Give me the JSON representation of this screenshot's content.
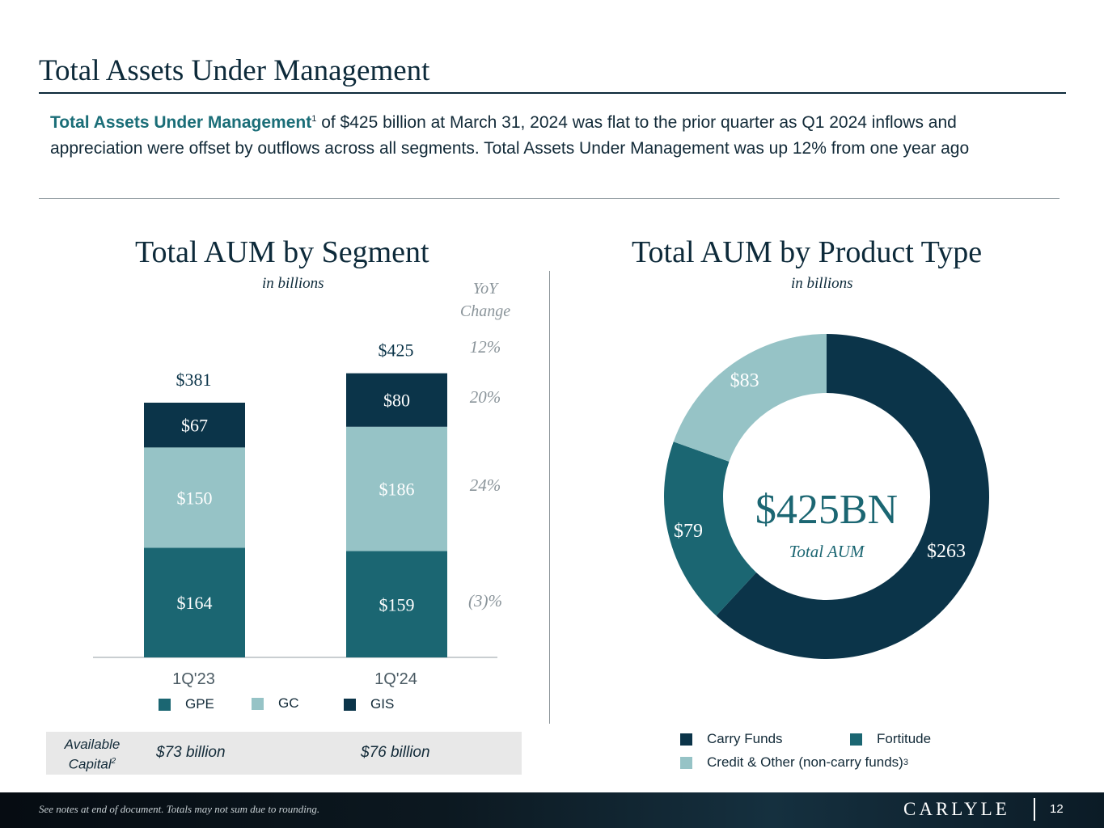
{
  "page": {
    "title": "Total Assets Under Management",
    "intro_lead": "Total Assets Under Management",
    "intro_sup": "1",
    "intro_text": " of $425 billion at March 31, 2024 was flat to the prior quarter as Q1 2024 inflows and appreciation were offset by outflows across all segments. Total Assets Under Management was up 12% from one year ago",
    "footer_note": "See notes at end of document. Totals may not sum due to rounding.",
    "brand": "CARLYLE",
    "page_number": "12"
  },
  "colors": {
    "dark_navy": "#0b3449",
    "teal": "#1b6672",
    "light_teal": "#96c3c6",
    "text": "#0a3347",
    "yoy_gray": "#8a949a"
  },
  "chart_data": [
    {
      "type": "bar",
      "stacked": true,
      "title": "Total AUM by Segment",
      "subtitle": "in billions",
      "categories": [
        "1Q'23",
        "1Q'24"
      ],
      "series": [
        {
          "name": "GPE",
          "values": [
            164,
            159
          ],
          "labels": [
            "$164",
            "$159"
          ],
          "color": "#1b6672"
        },
        {
          "name": "GC",
          "values": [
            150,
            186
          ],
          "labels": [
            "$150",
            "$186"
          ],
          "color": "#96c3c6"
        },
        {
          "name": "GIS",
          "values": [
            67,
            80
          ],
          "labels": [
            "$67",
            "$80"
          ],
          "color": "#0b3449"
        }
      ],
      "totals": [
        "$381",
        "$425"
      ],
      "yoy_header": "YoY Change",
      "yoy": {
        "total": "12%",
        "GIS": "20%",
        "GC": "24%",
        "GPE": "(3)%"
      },
      "available_capital": {
        "label": "Available Capital",
        "sup": "2",
        "values": [
          "$73 billion",
          "$76 billion"
        ]
      },
      "legend_placement": "bottom"
    },
    {
      "type": "pie",
      "donut": true,
      "title": "Total AUM by Product Type",
      "subtitle": "in billions",
      "slices": [
        {
          "name": "Carry Funds",
          "value": 263,
          "label": "$263",
          "color": "#0b3449"
        },
        {
          "name": "Fortitude",
          "value": 79,
          "label": "$79",
          "color": "#1b6672"
        },
        {
          "name": "Credit & Other (non-carry funds)",
          "sup": "3",
          "value": 83,
          "label": "$83",
          "color": "#96c3c6"
        }
      ],
      "center_value": "$425BN",
      "center_label": "Total AUM",
      "legend_placement": "bottom"
    }
  ]
}
